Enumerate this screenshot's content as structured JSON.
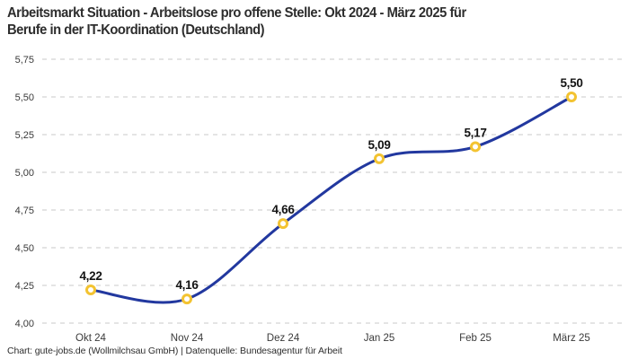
{
  "header": {
    "title_line1": "Arbeitsmarkt Situation - Arbeitslose pro offene Stelle: Okt 2024 - März 2025 für",
    "title_line2": "Berufe in der IT-Koordination (Deutschland)"
  },
  "footer": {
    "text": "Chart: gute-jobs.de (Wollmilchsau GmbH) | Datenquelle: Bundesagentur für Arbeit"
  },
  "chart_data": {
    "type": "line",
    "title": "Arbeitsmarkt Situation - Arbeitslose pro offene Stelle: Okt 2024 - März 2025 für Berufe in der IT-Koordination (Deutschland)",
    "categories": [
      "Okt 24",
      "Nov 24",
      "Dez 24",
      "Jan 25",
      "Feb 25",
      "März 25"
    ],
    "values": [
      4.22,
      4.16,
      4.66,
      5.09,
      5.17,
      5.5
    ],
    "value_labels": [
      "4,22",
      "4,16",
      "4,66",
      "5,09",
      "5,17",
      "5,50"
    ],
    "xlabel": "",
    "ylabel": "",
    "ylim": [
      4.0,
      5.75
    ],
    "ytick_step": 0.25,
    "ytick_labels": [
      "4,00",
      "4,25",
      "4,50",
      "4,75",
      "5,00",
      "5,25",
      "5,50",
      "5,75"
    ],
    "grid": "horizontal-dashed",
    "legend": "none",
    "line_color": "#22389f",
    "marker_ring_color": "#f3c331",
    "marker_fill_color": "#ffffff",
    "gridline_color": "#cacaca",
    "tick_label_color": "#3a3a3a",
    "data_label_color": "#141414"
  }
}
